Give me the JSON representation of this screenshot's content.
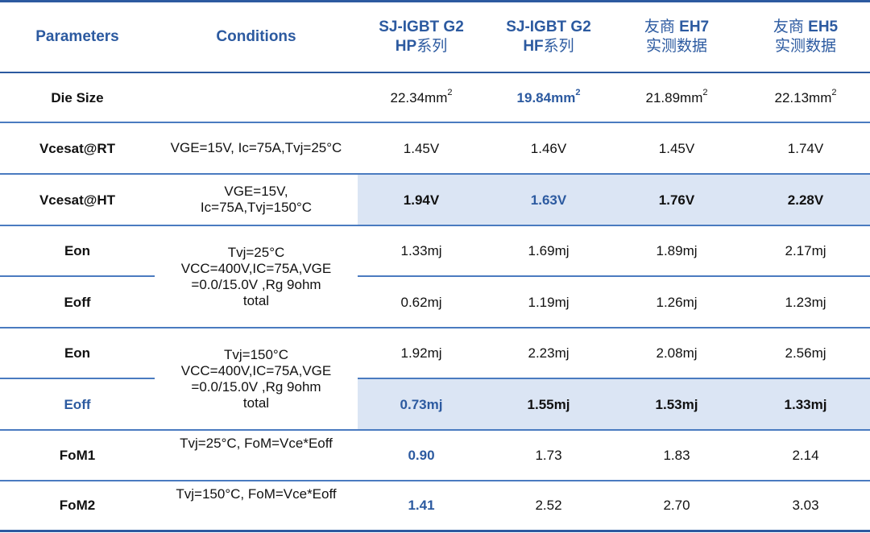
{
  "header": {
    "parameters": "Parameters",
    "conditions": "Conditions",
    "col1_line1": "SJ-IGBT G2",
    "col1_line2_bold": "HP",
    "col1_line2_rest": "系列",
    "col2_line1": "SJ-IGBT G2",
    "col2_line2_bold": "HF",
    "col2_line2_rest": "系列",
    "col3_line1_a": "友商 ",
    "col3_line1_b": "EH7",
    "col3_line2": "实测数据",
    "col4_line1_a": "友商 ",
    "col4_line1_b": "EH5",
    "col4_line2": "实测数据"
  },
  "rows": {
    "die": {
      "param": "Die Size",
      "v1": "22.34mm",
      "v2": "19.84mm",
      "v3": "21.89mm",
      "v4": "22.13mm",
      "sup": "2"
    },
    "vrt": {
      "param": "Vcesat@RT",
      "cond": "VGE=15V, Ic=75A,Tvj=25°C",
      "v1": "1.45V",
      "v2": "1.46V",
      "v3": "1.45V",
      "v4": "1.74V"
    },
    "vht": {
      "param": "Vcesat@HT",
      "cond_l1": "VGE=15V,",
      "cond_l2": "Ic=75A,Tvj=150°C",
      "v1": "1.94V",
      "v2": "1.63V",
      "v3": "1.76V",
      "v4": "2.28V"
    },
    "eon25": {
      "param": "Eon",
      "v1": "1.33mj",
      "v2": "1.69mj",
      "v3": "1.89mj",
      "v4": "2.17mj"
    },
    "cond25": {
      "l1": "Tvj=25°C",
      "l2": "VCC=400V,IC=75A,VGE",
      "l3": "=0.0/15.0V ,Rg 9ohm",
      "l4": "total"
    },
    "eoff25": {
      "param": "Eoff",
      "v1": "0.62mj",
      "v2": "1.19mj",
      "v3": "1.26mj",
      "v4": "1.23mj"
    },
    "eon150": {
      "param": "Eon",
      "v1": "1.92mj",
      "v2": "2.23mj",
      "v3": "2.08mj",
      "v4": "2.56mj"
    },
    "cond150": {
      "l1": "Tvj=150°C",
      "l2": "VCC=400V,IC=75A,VGE",
      "l3": "=0.0/15.0V ,Rg 9ohm",
      "l4": "total"
    },
    "eoff150": {
      "param": "Eoff",
      "v1": "0.73mj",
      "v2": "1.55mj",
      "v3": "1.53mj",
      "v4": "1.33mj"
    },
    "fom1": {
      "param": "FoM1",
      "cond": "Tvj=25°C, FoM=Vce*Eoff",
      "v1": "0.90",
      "v2": "1.73",
      "v3": "1.83",
      "v4": "2.14"
    },
    "fom2": {
      "param": "FoM2",
      "cond": "Tvj=150°C, FoM=Vce*Eoff",
      "v1": "1.41",
      "v2": "2.52",
      "v3": "2.70",
      "v4": "3.03"
    }
  },
  "colors": {
    "accent": "#2c5aa0",
    "highlight": "#dbe5f4"
  }
}
